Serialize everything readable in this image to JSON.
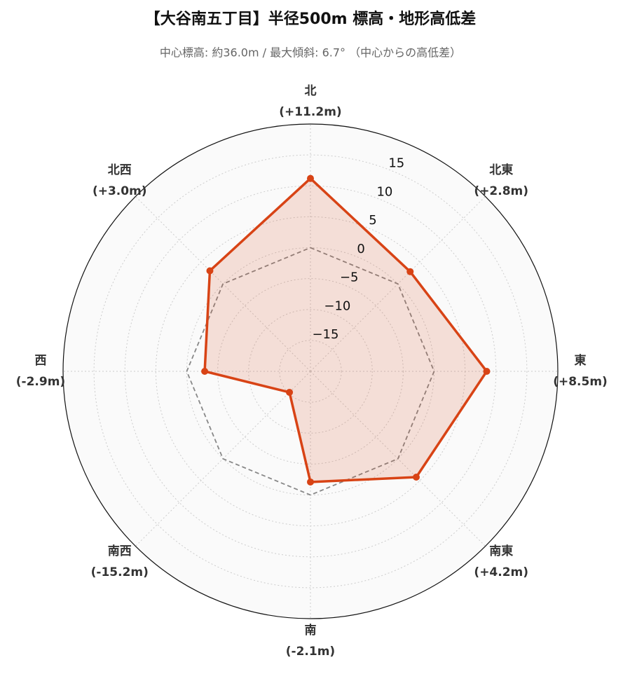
{
  "chart_data": {
    "type": "radar",
    "title": "【大谷南五丁目】半径500m 標高・地形高低差",
    "subtitle": "中心標高: 約36.0m / 最大傾斜: 6.7° （中心からの高低差）",
    "categories": [
      "北",
      "北東",
      "東",
      "南東",
      "南",
      "南西",
      "西",
      "北西"
    ],
    "series": [
      {
        "color": "#d84315",
        "values": [
          11.2,
          2.8,
          8.5,
          4.2,
          -2.1,
          -15.2,
          -2.9,
          3.0
        ],
        "value_labels": [
          "(+11.2m)",
          "(+2.8m)",
          "(+8.5m)",
          "(+4.2m)",
          "(-2.1m)",
          "(-15.2m)",
          "(-2.9m)",
          "(+3.0m)"
        ]
      }
    ],
    "reference_line": 0,
    "ylim": [
      -20,
      20
    ],
    "yticks": [
      {
        "value": -15,
        "label": "−15"
      },
      {
        "value": -10,
        "label": "−10"
      },
      {
        "value": -5,
        "label": "−5"
      },
      0,
      5,
      10,
      15
    ],
    "grid": true
  }
}
